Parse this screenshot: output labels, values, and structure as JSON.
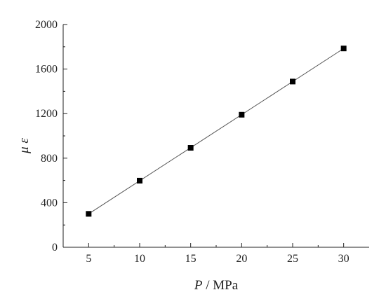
{
  "chart_data": {
    "type": "scatter",
    "x": [
      5,
      10,
      15,
      20,
      25,
      30
    ],
    "series": [
      {
        "values": [
          300,
          598,
          893,
          1190,
          1488,
          1785
        ],
        "marker": "square",
        "line": "linear-fit"
      }
    ],
    "xticks": [
      "5",
      "10",
      "15",
      "20",
      "25",
      "30"
    ],
    "yticks": [
      "0",
      "400",
      "800",
      "1200",
      "1600",
      "2000"
    ],
    "xlabel": {
      "var": "P",
      "sep": " / ",
      "unit": "MPa"
    },
    "ylabel": "μ ε",
    "xlim": [
      2.5,
      32.5
    ],
    "ylim": [
      0,
      2000
    ],
    "grid": false,
    "colors": {
      "axis": "#222222",
      "marker": "#000000",
      "line": "#555555"
    }
  }
}
